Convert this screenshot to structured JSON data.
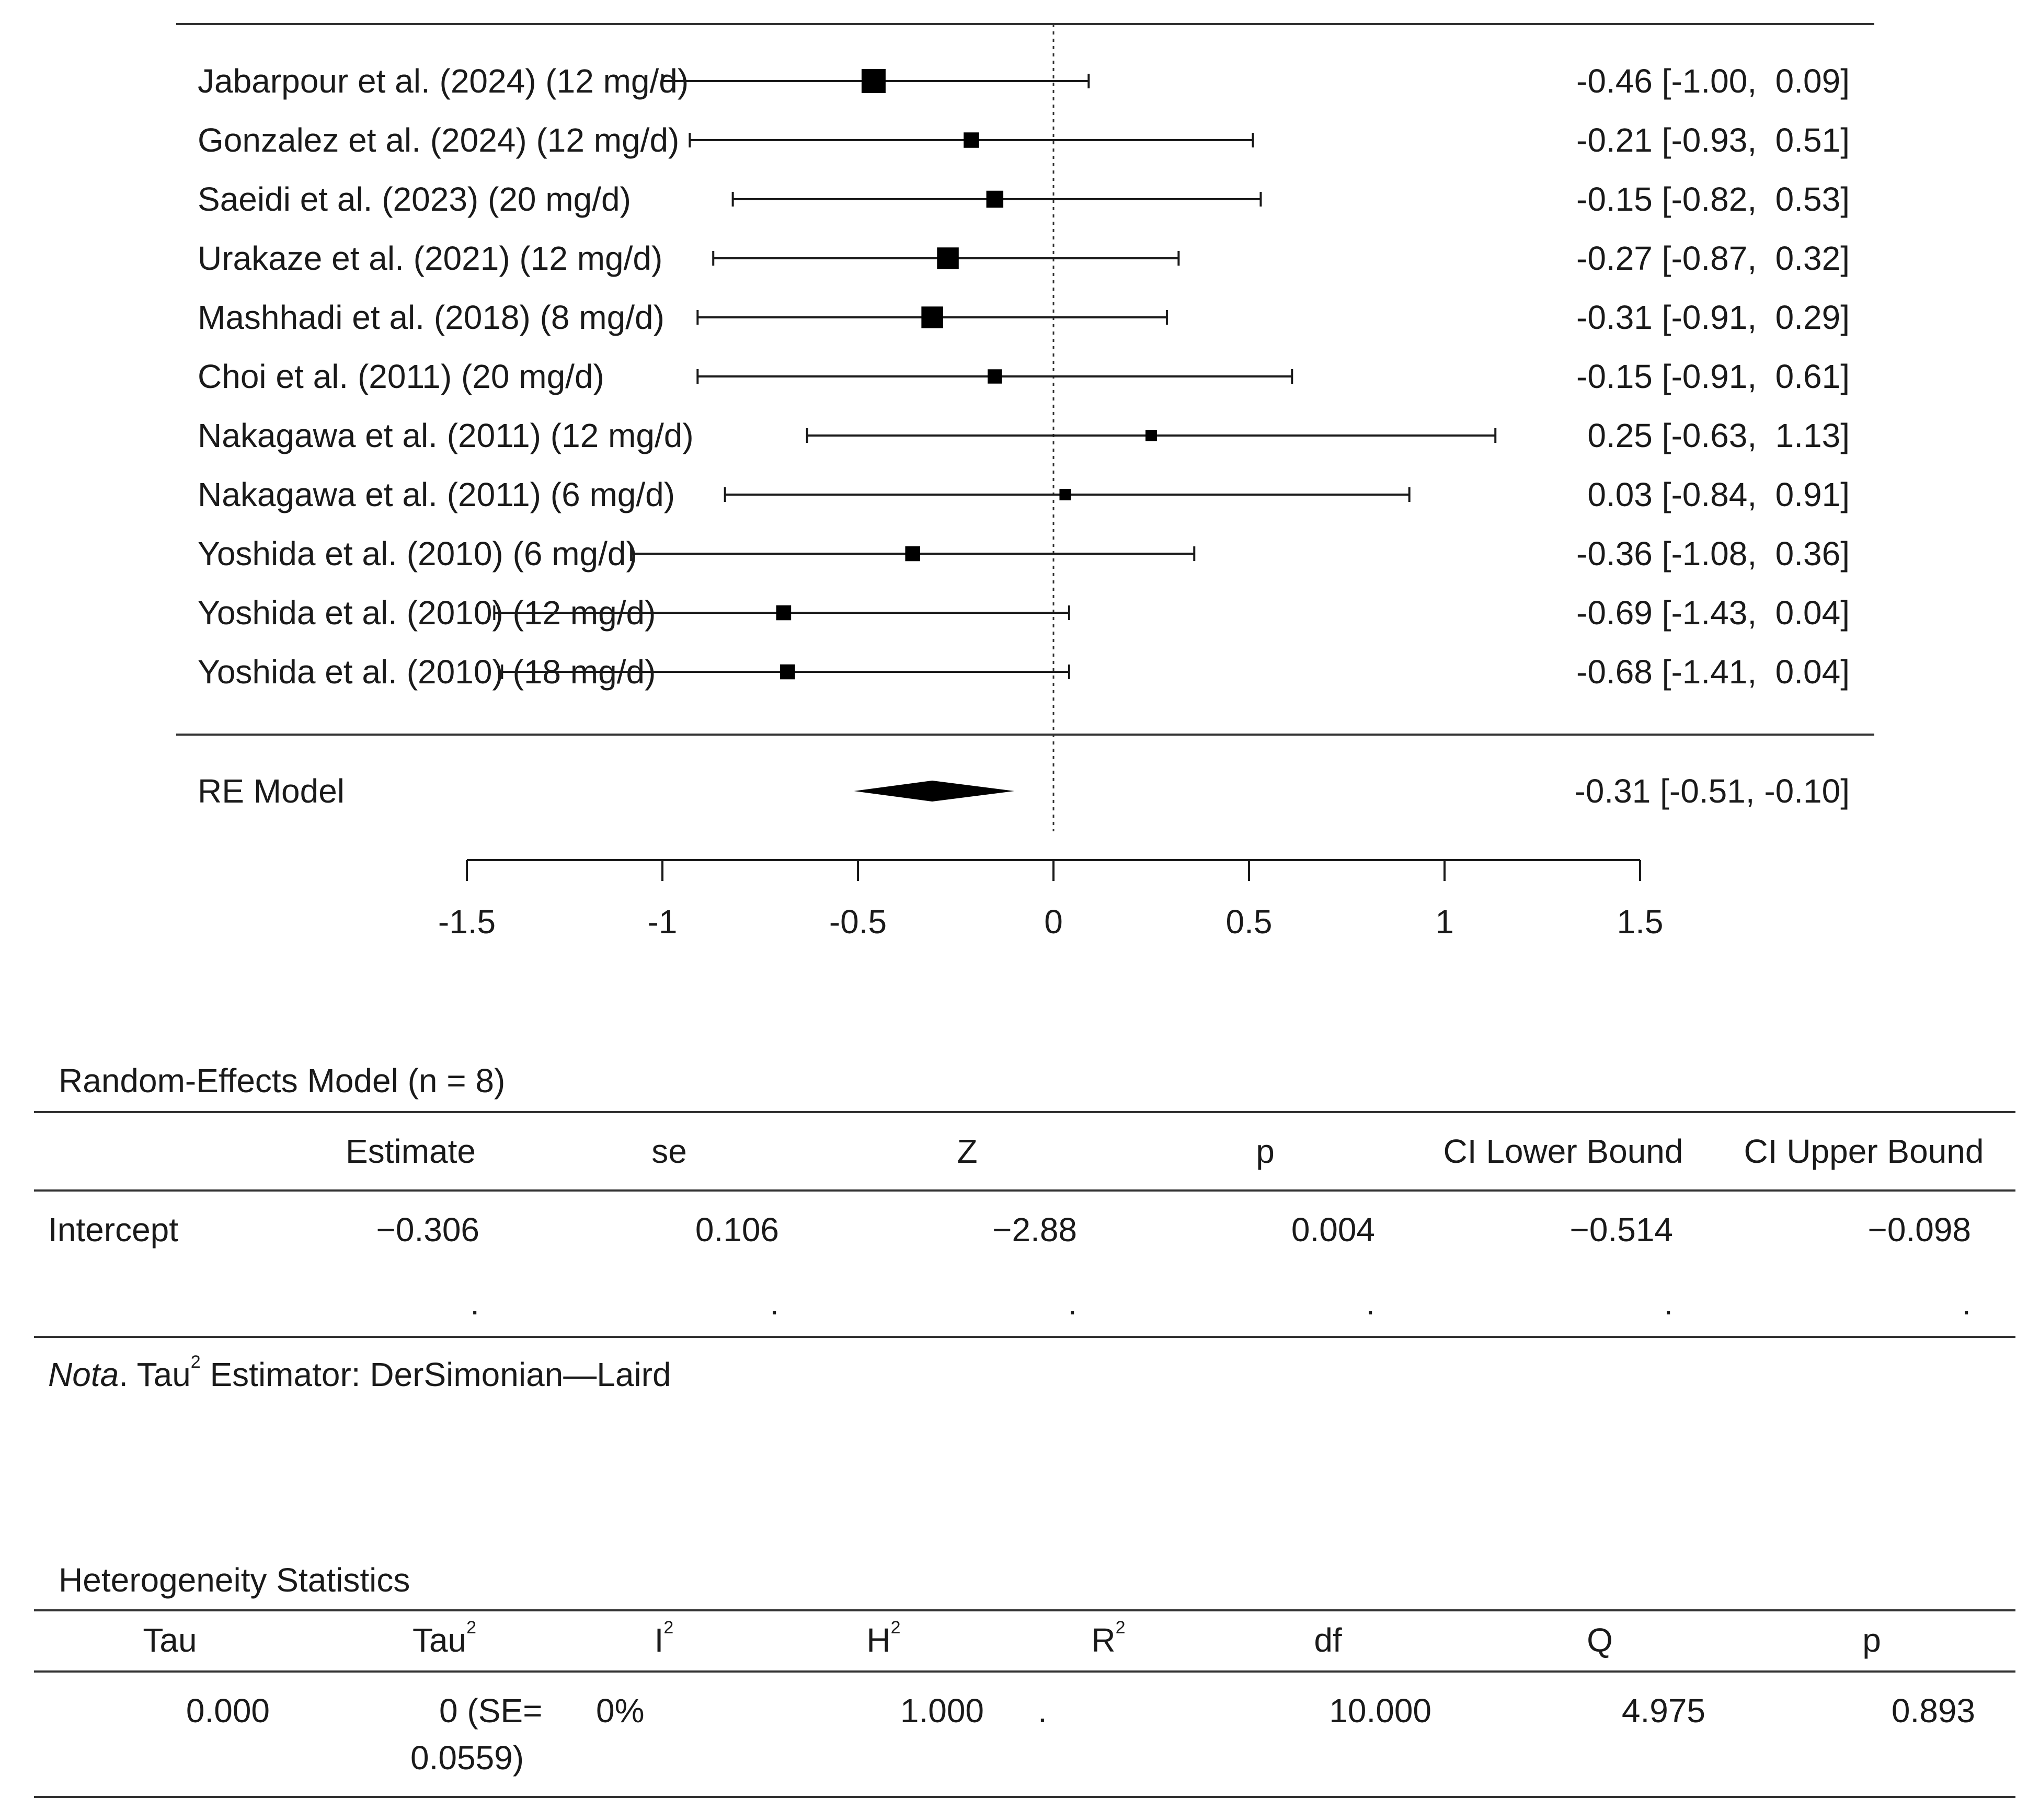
{
  "chart_data": {
    "type": "forest",
    "title": "",
    "xlabel": "",
    "ylabel": "",
    "xlim": [
      -1.5,
      1.5
    ],
    "x_ticks": [
      "-1.5",
      "-1",
      "-0.5",
      "0",
      "0.5",
      "1",
      "1.5"
    ],
    "x_tick_values": [
      -1.5,
      -1,
      -0.5,
      0,
      0.5,
      1,
      1.5
    ],
    "reference_line": 0,
    "studies": [
      {
        "label": "Jabarpour et al. (2024) (12 mg/d)",
        "estimate": -0.46,
        "lower": -1.0,
        "upper": 0.09,
        "weight": 1.0,
        "text": "-0.46 [-1.00,  0.09]"
      },
      {
        "label": "Gonzalez et al. (2024) (12 mg/d)",
        "estimate": -0.21,
        "lower": -0.93,
        "upper": 0.51,
        "weight": 0.45,
        "text": "-0.21 [-0.93,  0.51]"
      },
      {
        "label": "Saeidi et al. (2023) (20 mg/d)",
        "estimate": -0.15,
        "lower": -0.82,
        "upper": 0.53,
        "weight": 0.55,
        "text": "-0.15 [-0.82,  0.53]"
      },
      {
        "label": "Urakaze et al. (2021) (12 mg/d)",
        "estimate": -0.27,
        "lower": -0.87,
        "upper": 0.32,
        "weight": 0.85,
        "text": "-0.27 [-0.87,  0.32]"
      },
      {
        "label": "Mashhadi et al. (2018) (8 mg/d)",
        "estimate": -0.31,
        "lower": -0.91,
        "upper": 0.29,
        "weight": 0.85,
        "text": "-0.31 [-0.91,  0.29]"
      },
      {
        "label": "Choi et al. (2011) (20 mg/d)",
        "estimate": -0.15,
        "lower": -0.91,
        "upper": 0.61,
        "weight": 0.38,
        "text": "-0.15 [-0.91,  0.61]"
      },
      {
        "label": "Nakagawa et al. (2011) (12 mg/d)",
        "estimate": 0.25,
        "lower": -0.63,
        "upper": 1.13,
        "weight": 0.2,
        "text": "0.25 [-0.63,  1.13]"
      },
      {
        "label": "Nakagawa et al. (2011) (6 mg/d)",
        "estimate": 0.03,
        "lower": -0.84,
        "upper": 0.91,
        "weight": 0.2,
        "text": "0.03 [-0.84,  0.91]"
      },
      {
        "label": "Yoshida et al. (2010) (6 mg/d)",
        "estimate": -0.36,
        "lower": -1.08,
        "upper": 0.36,
        "weight": 0.42,
        "text": "-0.36 [-1.08,  0.36]"
      },
      {
        "label": "Yoshida et al. (2010) (12 mg/d)",
        "estimate": -0.69,
        "lower": -1.43,
        "upper": 0.04,
        "weight": 0.42,
        "text": "-0.69 [-1.43,  0.04]"
      },
      {
        "label": "Yoshida et al. (2010) (18 mg/d)",
        "estimate": -0.68,
        "lower": -1.41,
        "upper": 0.04,
        "weight": 0.42,
        "text": "-0.68 [-1.41,  0.04]"
      }
    ],
    "summary": {
      "label": "RE Model",
      "estimate": -0.31,
      "lower": -0.51,
      "upper": -0.1,
      "text": "-0.31 [-0.51, -0.10]"
    }
  },
  "re_table": {
    "title": "Random-Effects Model (n = 8)",
    "headers": [
      "",
      "Estimate",
      "se",
      "Z",
      "p",
      "CI Lower Bound",
      "CI Upper Bound"
    ],
    "row": [
      "Intercept",
      "−0.306",
      "0.106",
      "−2.88",
      "0.004",
      "−0.514",
      "−0.098"
    ],
    "dots": [
      ".",
      ".",
      ".",
      ".",
      ".",
      "."
    ],
    "note_label": "Nota",
    "note_text": ". Tau",
    "note_sup": "2",
    "note_rest": " Estimator: DerSimonian—Laird"
  },
  "het_table": {
    "title": "Heterogeneity Statistics",
    "headers": [
      "Tau",
      "Tau",
      "I",
      "H",
      "R",
      "df",
      "Q",
      "p"
    ],
    "header_sups": [
      "",
      "2",
      "2",
      "2",
      "2",
      "",
      "",
      ""
    ],
    "values": [
      "0.000",
      "0 (SE=",
      "0.0559)",
      "0%",
      "1.000",
      ".",
      "10.000",
      "4.975",
      "0.893"
    ]
  }
}
